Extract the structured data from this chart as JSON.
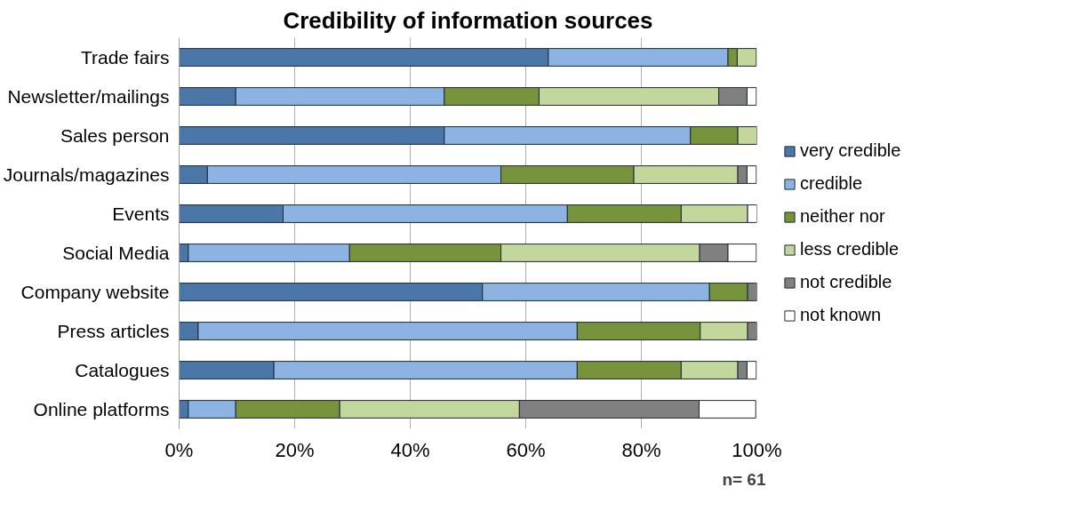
{
  "chart_data": {
    "type": "bar",
    "orientation": "horizontal",
    "stacked": true,
    "title": "Credibility of information sources",
    "categories": [
      "Trade fairs",
      "Newsletter/mailings",
      "Sales person",
      "Journals/magazines",
      "Events",
      "Social Media",
      "Company website",
      "Press articles",
      "Catalogues",
      "Online platforms"
    ],
    "series": [
      {
        "name": "very credible",
        "color": "#4a76a8",
        "values": [
          63.9,
          9.8,
          45.9,
          4.9,
          18.0,
          1.6,
          52.5,
          3.3,
          16.4,
          1.6
        ]
      },
      {
        "name": "credible",
        "color": "#8db3e2",
        "values": [
          31.1,
          36.1,
          42.6,
          50.8,
          49.2,
          27.9,
          39.3,
          65.6,
          52.5,
          8.2
        ]
      },
      {
        "name": "neither nor",
        "color": "#77933c",
        "values": [
          1.6,
          16.4,
          8.2,
          23.0,
          19.7,
          26.2,
          6.6,
          21.3,
          18.0,
          18.0
        ]
      },
      {
        "name": "less credible",
        "color": "#c3d69b",
        "values": [
          3.3,
          31.1,
          3.3,
          18.0,
          11.5,
          34.4,
          0,
          8.2,
          9.8,
          31.1
        ]
      },
      {
        "name": "not credible",
        "color": "#808080",
        "values": [
          0,
          4.9,
          0,
          1.6,
          0,
          4.9,
          1.6,
          1.6,
          1.6,
          31.1
        ]
      },
      {
        "name": "not known",
        "color": "#ffffff",
        "values": [
          0,
          1.6,
          0,
          1.6,
          1.6,
          4.9,
          0,
          0,
          1.6,
          9.8
        ]
      }
    ],
    "xlim": [
      0,
      100
    ],
    "xticks": [
      {
        "value": 0,
        "label": "0%"
      },
      {
        "value": 20,
        "label": "20%"
      },
      {
        "value": 40,
        "label": "40%"
      },
      {
        "value": 60,
        "label": "60%"
      },
      {
        "value": 80,
        "label": "80%"
      },
      {
        "value": 100,
        "label": "100%"
      }
    ],
    "grid": "x",
    "legend": "right",
    "annotations": [
      "n= 61"
    ]
  }
}
